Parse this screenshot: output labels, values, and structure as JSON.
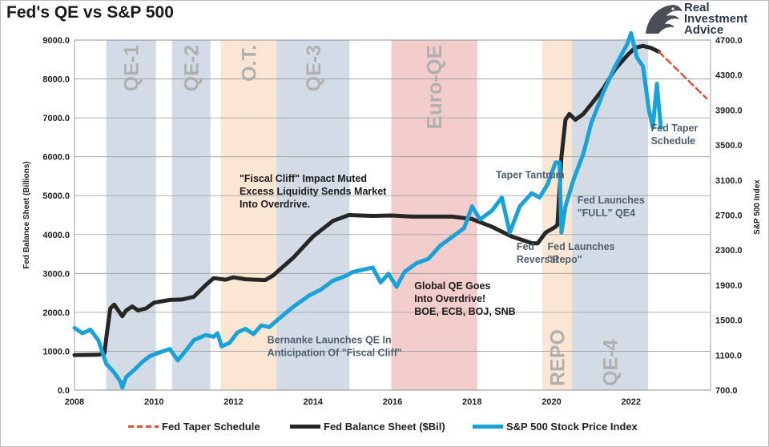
{
  "title": "Fed's QE vs S&P 500",
  "logo": {
    "line1": "Real",
    "line2": "Investment",
    "line3": "Advice"
  },
  "chart_data": {
    "type": "line",
    "title": "Fed's QE vs S&P 500",
    "x_axis": {
      "min": 2008,
      "max": 2024,
      "ticks": [
        "2008",
        "2010",
        "2012",
        "2014",
        "2016",
        "2018",
        "2020",
        "2022"
      ]
    },
    "y_left": {
      "label": "Fed Balance Sheet (Billions)",
      "min": 0,
      "max": 9000,
      "ticks": [
        "0.0",
        "1000.0",
        "2000.0",
        "3000.0",
        "4000.0",
        "5000.0",
        "6000.0",
        "7000.0",
        "8000.0",
        "9000.0"
      ]
    },
    "y_right": {
      "label": "S&P 500 Index",
      "min": 700,
      "max": 4700,
      "ticks": [
        "700.0",
        "1100.0",
        "1500.0",
        "1900.0",
        "2300.0",
        "2700.0",
        "3100.0",
        "3500.0",
        "3900.0",
        "4300.0",
        "4700.0"
      ]
    },
    "bands": [
      {
        "label": "QE-1",
        "start": 2008.8,
        "end": 2010.05,
        "color": "#d3dce6"
      },
      {
        "label": "QE-2",
        "start": 2010.45,
        "end": 2011.42,
        "color": "#d3dce6"
      },
      {
        "label": "O.T.",
        "start": 2011.68,
        "end": 2013.08,
        "color": "#fbe6d4"
      },
      {
        "label": "QE-3",
        "start": 2013.08,
        "end": 2014.92,
        "color": "#d3dce6"
      },
      {
        "label": "Euro-QE",
        "start": 2015.97,
        "end": 2018.13,
        "color": "#f3cccc"
      },
      {
        "label": "REPO",
        "start": 2019.77,
        "end": 2020.51,
        "color": "#fbe6d4"
      },
      {
        "label": "QE-4",
        "start": 2020.51,
        "end": 2022.43,
        "color": "#d3dce6"
      }
    ],
    "series": [
      {
        "name": "Fed Balance Sheet ($Bil)",
        "axis": "left",
        "color": "#262626",
        "points": [
          [
            2008.0,
            900
          ],
          [
            2008.6,
            910
          ],
          [
            2008.75,
            940
          ],
          [
            2008.82,
            1500
          ],
          [
            2008.9,
            2100
          ],
          [
            2009.0,
            2200
          ],
          [
            2009.1,
            2050
          ],
          [
            2009.2,
            1900
          ],
          [
            2009.3,
            2050
          ],
          [
            2009.45,
            2150
          ],
          [
            2009.6,
            2050
          ],
          [
            2009.8,
            2100
          ],
          [
            2010.0,
            2250
          ],
          [
            2010.4,
            2320
          ],
          [
            2010.7,
            2330
          ],
          [
            2011.0,
            2400
          ],
          [
            2011.3,
            2700
          ],
          [
            2011.5,
            2880
          ],
          [
            2011.8,
            2840
          ],
          [
            2012.0,
            2900
          ],
          [
            2012.3,
            2850
          ],
          [
            2012.8,
            2830
          ],
          [
            2013.0,
            2950
          ],
          [
            2013.5,
            3400
          ],
          [
            2014.0,
            3950
          ],
          [
            2014.5,
            4350
          ],
          [
            2014.9,
            4500
          ],
          [
            2015.5,
            4480
          ],
          [
            2016.0,
            4490
          ],
          [
            2016.5,
            4460
          ],
          [
            2017.0,
            4460
          ],
          [
            2017.5,
            4460
          ],
          [
            2018.0,
            4400
          ],
          [
            2018.5,
            4200
          ],
          [
            2019.0,
            3950
          ],
          [
            2019.5,
            3780
          ],
          [
            2019.65,
            3770
          ],
          [
            2019.85,
            4050
          ],
          [
            2020.1,
            4200
          ],
          [
            2020.15,
            4250
          ],
          [
            2020.25,
            6000
          ],
          [
            2020.35,
            6950
          ],
          [
            2020.45,
            7100
          ],
          [
            2020.6,
            6950
          ],
          [
            2020.8,
            7100
          ],
          [
            2021.0,
            7350
          ],
          [
            2021.3,
            7750
          ],
          [
            2021.6,
            8250
          ],
          [
            2021.9,
            8600
          ],
          [
            2022.1,
            8800
          ],
          [
            2022.3,
            8850
          ],
          [
            2022.5,
            8800
          ],
          [
            2022.7,
            8700
          ]
        ]
      },
      {
        "name": "S&P 500 Stock Price Index",
        "axis": "right",
        "color": "#18a2d8",
        "points": [
          [
            2008.0,
            1410
          ],
          [
            2008.2,
            1350
          ],
          [
            2008.4,
            1390
          ],
          [
            2008.6,
            1270
          ],
          [
            2008.8,
            1000
          ],
          [
            2009.0,
            900
          ],
          [
            2009.15,
            800
          ],
          [
            2009.2,
            730
          ],
          [
            2009.3,
            850
          ],
          [
            2009.5,
            930
          ],
          [
            2009.7,
            1020
          ],
          [
            2009.9,
            1090
          ],
          [
            2010.2,
            1140
          ],
          [
            2010.4,
            1170
          ],
          [
            2010.6,
            1040
          ],
          [
            2010.8,
            1150
          ],
          [
            2011.0,
            1270
          ],
          [
            2011.3,
            1330
          ],
          [
            2011.5,
            1310
          ],
          [
            2011.6,
            1350
          ],
          [
            2011.7,
            1200
          ],
          [
            2011.9,
            1240
          ],
          [
            2012.1,
            1360
          ],
          [
            2012.3,
            1400
          ],
          [
            2012.5,
            1340
          ],
          [
            2012.7,
            1440
          ],
          [
            2012.9,
            1420
          ],
          [
            2013.1,
            1500
          ],
          [
            2013.5,
            1650
          ],
          [
            2013.9,
            1780
          ],
          [
            2014.2,
            1850
          ],
          [
            2014.5,
            1950
          ],
          [
            2014.8,
            2000
          ],
          [
            2015.0,
            2050
          ],
          [
            2015.3,
            2080
          ],
          [
            2015.5,
            2100
          ],
          [
            2015.7,
            1930
          ],
          [
            2015.9,
            2030
          ],
          [
            2016.1,
            1880
          ],
          [
            2016.3,
            2050
          ],
          [
            2016.6,
            2150
          ],
          [
            2016.9,
            2200
          ],
          [
            2017.2,
            2350
          ],
          [
            2017.5,
            2450
          ],
          [
            2017.8,
            2550
          ],
          [
            2018.0,
            2800
          ],
          [
            2018.2,
            2650
          ],
          [
            2018.5,
            2750
          ],
          [
            2018.75,
            2900
          ],
          [
            2018.95,
            2500
          ],
          [
            2019.2,
            2800
          ],
          [
            2019.5,
            2950
          ],
          [
            2019.7,
            2900
          ],
          [
            2019.9,
            3050
          ],
          [
            2020.1,
            3300
          ],
          [
            2020.2,
            3300
          ],
          [
            2020.25,
            2500
          ],
          [
            2020.35,
            2800
          ],
          [
            2020.55,
            3100
          ],
          [
            2020.8,
            3400
          ],
          [
            2021.0,
            3750
          ],
          [
            2021.3,
            4100
          ],
          [
            2021.6,
            4400
          ],
          [
            2021.9,
            4650
          ],
          [
            2022.0,
            4780
          ],
          [
            2022.15,
            4500
          ],
          [
            2022.3,
            4400
          ],
          [
            2022.45,
            3900
          ],
          [
            2022.55,
            3700
          ],
          [
            2022.65,
            4200
          ],
          [
            2022.75,
            3700
          ]
        ]
      },
      {
        "name": "Fed Taper Schedule",
        "axis": "left",
        "color": "#d9553b",
        "style": "dashed",
        "points": [
          [
            2022.7,
            8700
          ],
          [
            2023.9,
            7500
          ]
        ]
      }
    ],
    "annotations": [
      {
        "text": "\"Fiscal Cliff\" Impact Muted\nExcess Liquidity Sends Market\nInto Overdrive.",
        "x": 2012.15,
        "y": 5350,
        "color": "#1a1a1a"
      },
      {
        "text": "Bernanke Launches QE In\nAnticipation Of \"Fiscal Cliff\"",
        "x": 2012.85,
        "y": 1200,
        "color": "#4f6070"
      },
      {
        "text": "Global QE Goes\nInto Overdrive!\nBOE, ECB, BOJ, SNB",
        "x": 2016.55,
        "y": 2600,
        "color": "#1a1a1a"
      },
      {
        "text": "Taper Tantrum",
        "x": 2018.6,
        "y": 5450,
        "color": "#4f6070"
      },
      {
        "text": "Fed\nReversal",
        "x": 2019.12,
        "y": 3600,
        "color": "#4f6070"
      },
      {
        "text": "Fed Launches\n\"Repo\"",
        "x": 2019.9,
        "y": 3600,
        "color": "#4f6070"
      },
      {
        "text": "Fed Launches\n\"FULL\" QE4",
        "x": 2020.65,
        "y": 4800,
        "color": "#4f6070"
      },
      {
        "text": "Fed Taper\nSchedule",
        "x": 2022.5,
        "y": 6650,
        "color": "#4f6070"
      }
    ]
  },
  "legend": [
    {
      "label": "Fed Taper Schedule",
      "color": "#d9553b",
      "style": "dashed"
    },
    {
      "label": "Fed Balance Sheet ($Bil)",
      "color": "#262626",
      "style": "solid"
    },
    {
      "label": "S&P 500 Stock Price Index",
      "color": "#18a2d8",
      "style": "solid"
    }
  ]
}
